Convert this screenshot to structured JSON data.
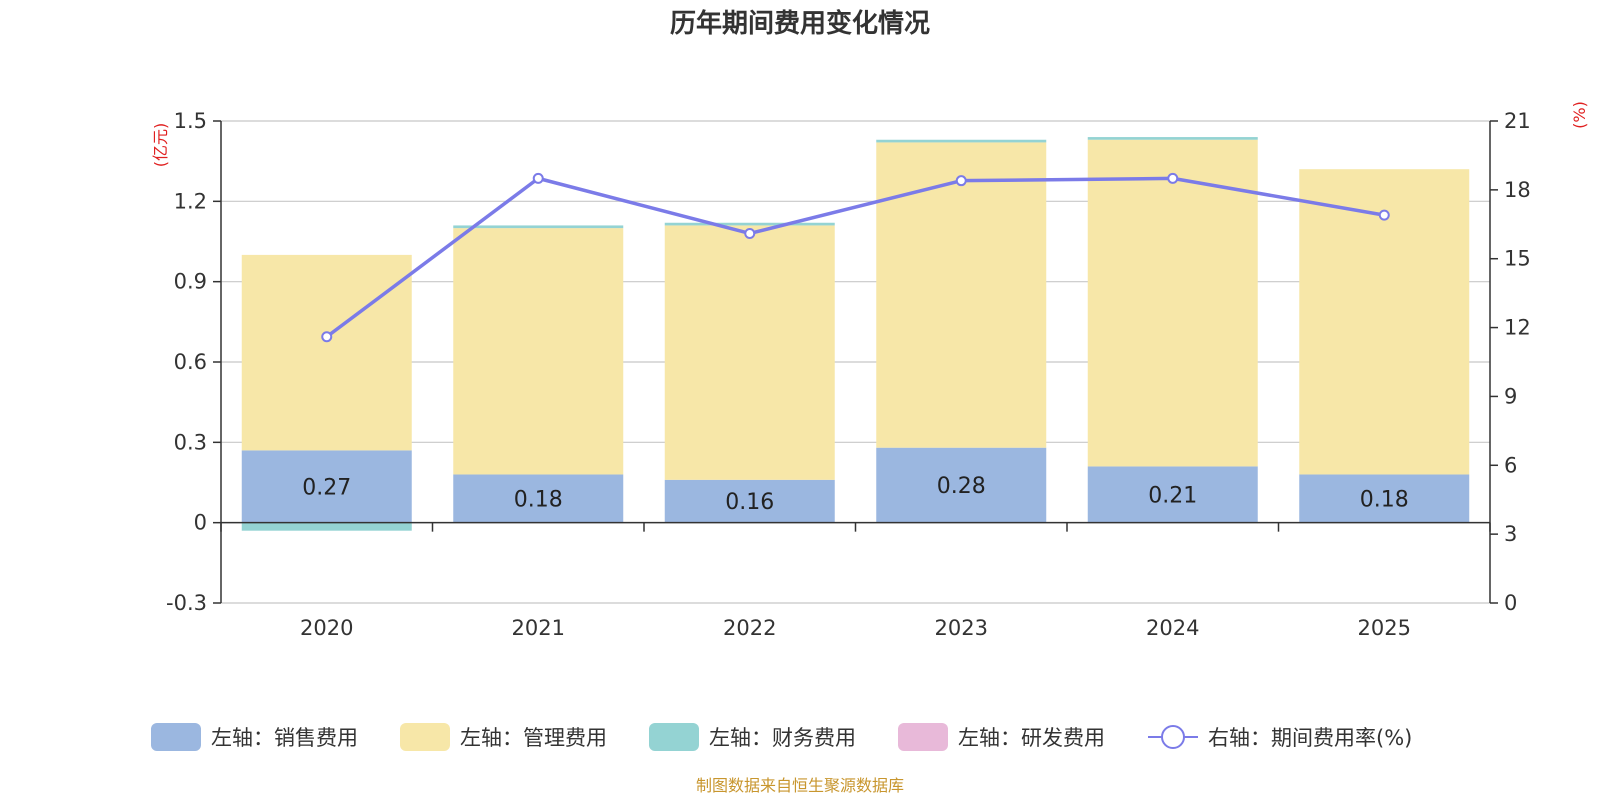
{
  "chart_data": {
    "type": "bar",
    "title": "历年期间费用变化情况",
    "categories": [
      "2020",
      "2021",
      "2022",
      "2023",
      "2024",
      "2025"
    ],
    "left_axis": {
      "unit": "(亿元)",
      "ylim": [
        -0.3,
        1.5
      ],
      "ticks": [
        "1.5",
        "1.2",
        "0.9",
        "0.6",
        "0.3",
        "0",
        "-0.3"
      ],
      "tick_values": [
        1.5,
        1.2,
        0.9,
        0.6,
        0.3,
        0,
        -0.3
      ]
    },
    "right_axis": {
      "unit": "(%)",
      "ylim": [
        0,
        21
      ],
      "ticks": [
        "21",
        "18",
        "15",
        "12",
        "9",
        "6",
        "3",
        "0"
      ],
      "tick_values": [
        21,
        18,
        15,
        12,
        9,
        6,
        3,
        0
      ]
    },
    "series": [
      {
        "name": "左轴：销售费用",
        "axis": "left",
        "kind": "bar",
        "color": "#9bb7e0",
        "values": [
          0.27,
          0.18,
          0.16,
          0.28,
          0.21,
          0.18
        ],
        "labels": [
          "0.27",
          "0.18",
          "0.16",
          "0.28",
          "0.21",
          "0.18"
        ]
      },
      {
        "name": "左轴：管理费用",
        "axis": "left",
        "kind": "bar",
        "color": "#f7e7a8",
        "values": [
          0.73,
          0.92,
          0.95,
          1.14,
          1.22,
          1.14
        ]
      },
      {
        "name": "左轴：财务费用",
        "axis": "left",
        "kind": "bar",
        "color": "#94d3d3",
        "values": [
          -0.03,
          0.01,
          0.01,
          0.01,
          0.01,
          0.0
        ]
      },
      {
        "name": "左轴：研发费用",
        "axis": "left",
        "kind": "bar",
        "color": "#e8b9d9",
        "values": [
          0,
          0,
          0,
          0,
          0,
          0
        ]
      },
      {
        "name": "右轴：期间费用率(%)",
        "axis": "right",
        "kind": "line",
        "color": "#7b7be8",
        "values": [
          11.6,
          18.5,
          16.1,
          18.4,
          18.5,
          16.9
        ]
      }
    ],
    "source": "制图数据来自恒生聚源数据库"
  }
}
